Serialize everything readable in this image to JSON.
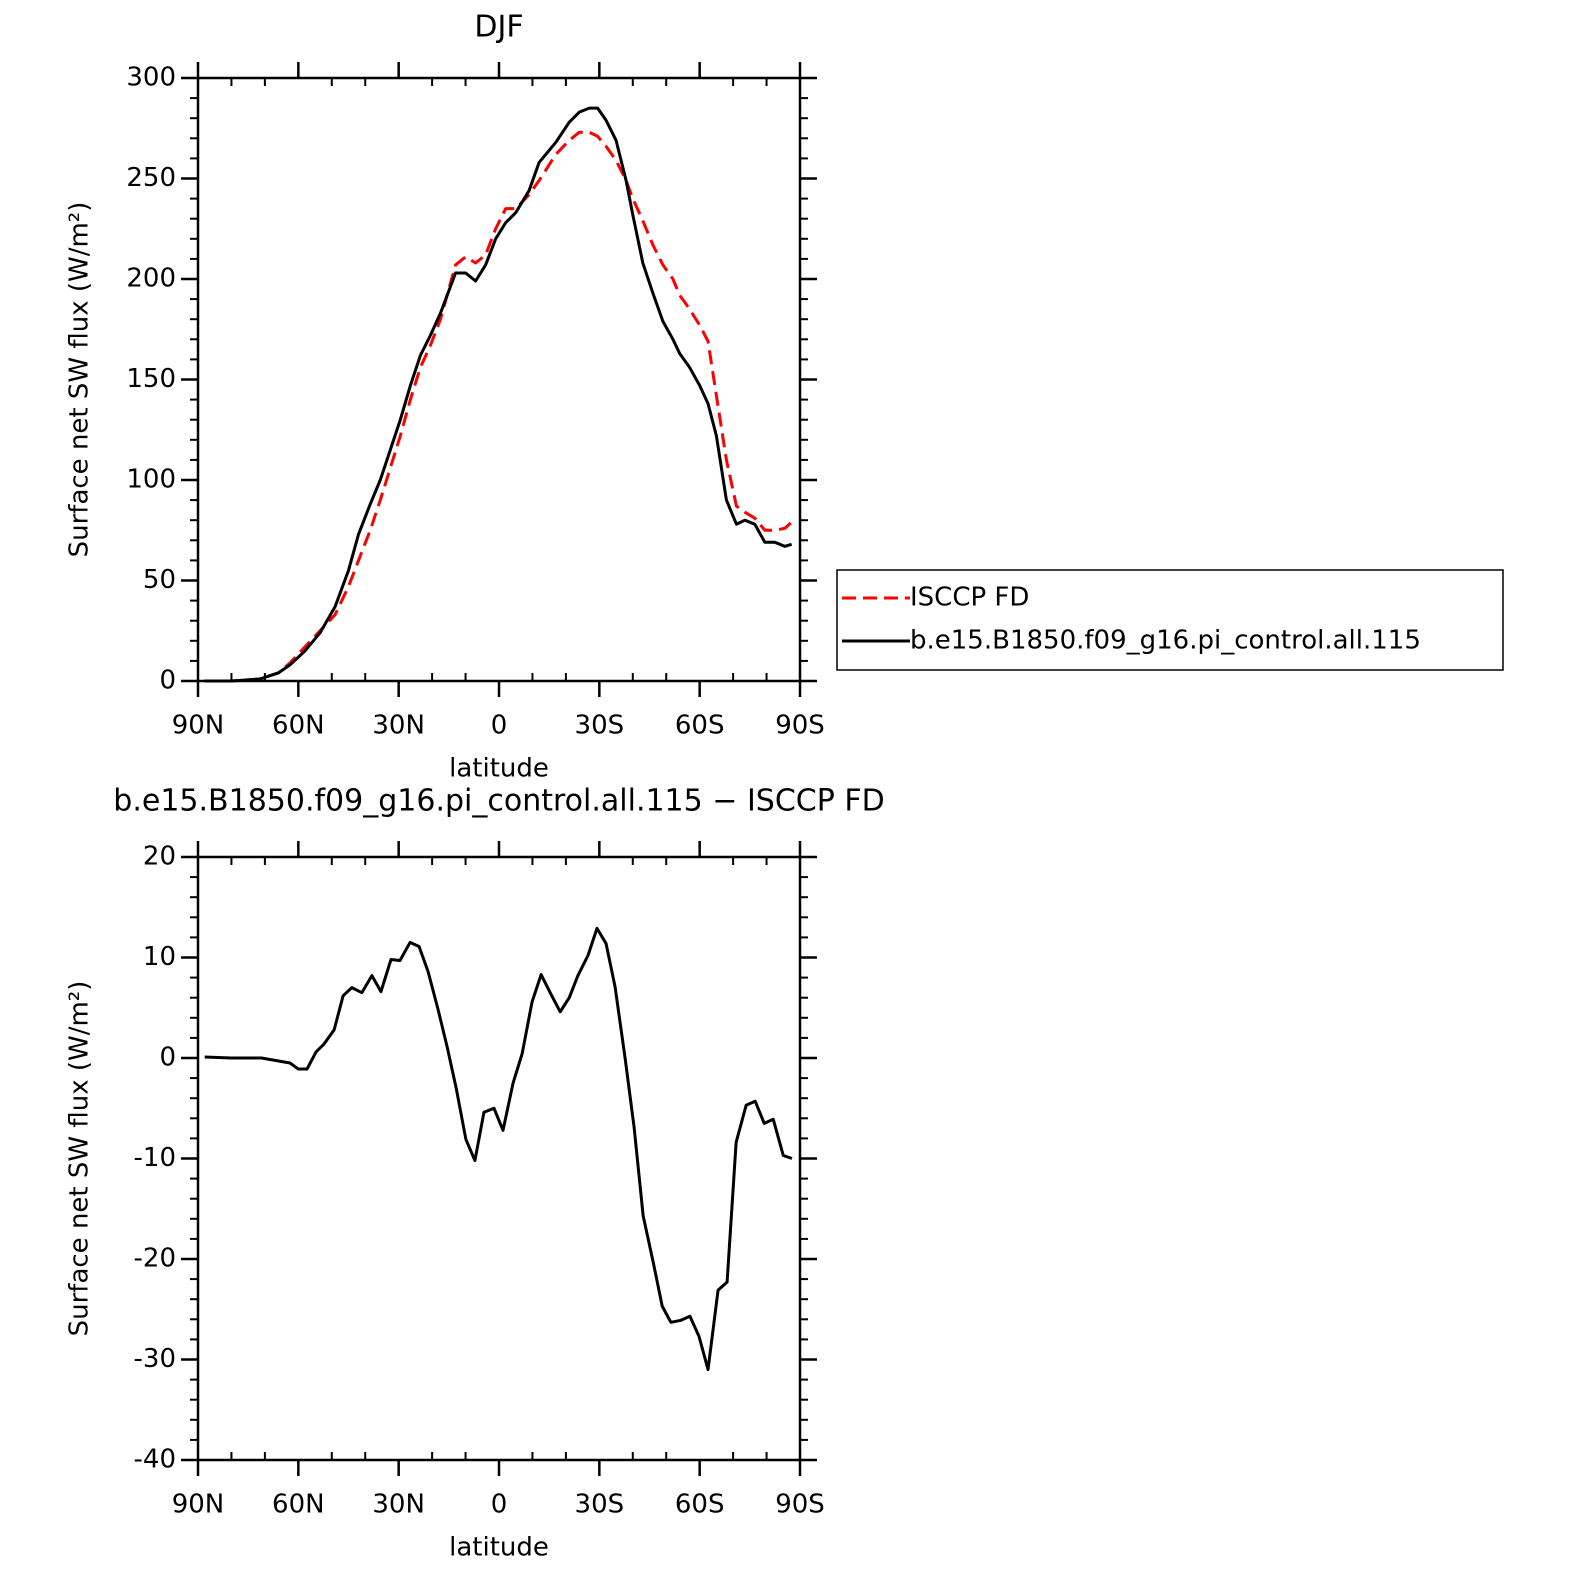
{
  "chart_data": [
    {
      "type": "line",
      "title": "DJF",
      "xlabel": "latitude",
      "ylabel": "Surface net SW flux (W/m²)",
      "x": [
        88,
        80,
        71.5,
        66,
        62.5,
        58,
        53.5,
        49,
        45,
        42,
        38.5,
        35.5,
        32.5,
        29.5,
        26.5,
        23.5,
        20.5,
        17.5,
        13,
        10,
        7,
        4,
        1,
        -2,
        -5,
        -9,
        -12,
        -17,
        -21,
        -24,
        -27,
        -29.5,
        -32,
        -35,
        -38,
        -40,
        -43,
        -46,
        -49,
        -52,
        -54,
        -57,
        -60,
        -62.5,
        -65,
        -68,
        -71,
        -73.5,
        -76.5,
        -79.5,
        -82.5,
        -85.5,
        -87.5
      ],
      "series": [
        {
          "name": "ISCCP FD",
          "color": "#ff0000",
          "dashed": true,
          "values": [
            0,
            0,
            1,
            4,
            9,
            17,
            25,
            33,
            47,
            60,
            75,
            90,
            106,
            122,
            140,
            156,
            167,
            180,
            207,
            211,
            208,
            212,
            225,
            235,
            235,
            242,
            249,
            262,
            269,
            273,
            273,
            271,
            266,
            259,
            249,
            240,
            229,
            217,
            207,
            200,
            192,
            185,
            177,
            169,
            142,
            110,
            87,
            84,
            81,
            75,
            75,
            76,
            79
          ]
        },
        {
          "name": "b.e15.B1850.f09_g16.pi_control.all.115",
          "color": "#000000",
          "dashed": false,
          "values": [
            0,
            0,
            1,
            4,
            8,
            15,
            24,
            37,
            55,
            73,
            88,
            100,
            115,
            130,
            147,
            162,
            172,
            183,
            203,
            203,
            199,
            207,
            220,
            228,
            233,
            244,
            258,
            268,
            278,
            283,
            285,
            285,
            279,
            269,
            249,
            232,
            208,
            193,
            179,
            170,
            163,
            156,
            147,
            138,
            122,
            90,
            78,
            80,
            78,
            69,
            69,
            67,
            68
          ]
        }
      ],
      "xlim": [
        90,
        -90
      ],
      "xticks": [
        {
          "value": 90,
          "label": "90N"
        },
        {
          "value": 60,
          "label": "60N"
        },
        {
          "value": 30,
          "label": "30N"
        },
        0,
        {
          "value": -30,
          "label": "30S"
        },
        {
          "value": -60,
          "label": "60S"
        },
        {
          "value": -90,
          "label": "90S"
        }
      ],
      "xminor": [
        80,
        70,
        50,
        40,
        20,
        10,
        -10,
        -20,
        -40,
        -50,
        -70,
        -80
      ],
      "ylim": [
        0,
        300
      ],
      "yticks": [
        0,
        50,
        100,
        150,
        200,
        250,
        300
      ],
      "yminor": [
        10,
        20,
        30,
        40,
        60,
        70,
        80,
        90,
        110,
        120,
        130,
        140,
        160,
        170,
        180,
        190,
        210,
        220,
        230,
        240,
        260,
        270,
        280,
        290
      ],
      "legend": "right"
    },
    {
      "type": "line",
      "title": "b.e15.B1850.f09_g16.pi_control.all.115 − ISCCP FD",
      "xlabel": "latitude",
      "ylabel": "Surface net SW flux (W/m²)",
      "x": [
        88,
        80,
        71,
        62.5,
        60,
        57.4,
        54.7,
        52.3,
        49.3,
        46.6,
        44,
        41,
        38,
        35.3,
        32.3,
        29.6,
        26.6,
        23.9,
        21.2,
        18.2,
        15.5,
        12.8,
        9.9,
        7.2,
        4.5,
        1.5,
        -1.2,
        -4.2,
        -6.9,
        -9.9,
        -12.6,
        -15.3,
        -18.3,
        -21,
        -23.6,
        -26.6,
        -29.3,
        -32,
        -34.7,
        -37.7,
        -40.4,
        -43.1,
        -46.1,
        -48.8,
        -51.4,
        -54.4,
        -57.1,
        -59.8,
        -62.5,
        -65.5,
        -68.2,
        -70.9,
        -73.9,
        -76.6,
        -79.3,
        -82,
        -85,
        -87.6
      ],
      "series": [
        {
          "color": "#000000",
          "dashed": false,
          "values": [
            0.1,
            0,
            0,
            -0.5,
            -1.1,
            -1.1,
            0.6,
            1.4,
            2.8,
            6.2,
            7,
            6.5,
            8.2,
            6.6,
            9.8,
            9.7,
            11.5,
            11.1,
            8.6,
            4.8,
            1.1,
            -3,
            -8.1,
            -10.2,
            -5.4,
            -5,
            -7.2,
            -2.5,
            0.4,
            5.6,
            8.3,
            6.5,
            4.6,
            6,
            8.2,
            10.2,
            12.9,
            11.4,
            7.1,
            0,
            -6.9,
            -15.7,
            -20.3,
            -24.7,
            -26.3,
            -26.1,
            -25.7,
            -27.7,
            -31,
            -23.1,
            -22.3,
            -8.4,
            -4.7,
            -4.3,
            -6.5,
            -6.1,
            -9.7,
            -10
          ]
        }
      ],
      "xlim": [
        90,
        -90
      ],
      "xticks": [
        {
          "value": 90,
          "label": "90N"
        },
        {
          "value": 60,
          "label": "60N"
        },
        {
          "value": 30,
          "label": "30N"
        },
        0,
        {
          "value": -30,
          "label": "30S"
        },
        {
          "value": -60,
          "label": "60S"
        },
        {
          "value": -90,
          "label": "90S"
        }
      ],
      "xminor": [
        80,
        70,
        50,
        40,
        20,
        10,
        -10,
        -20,
        -40,
        -50,
        -70,
        -80
      ],
      "ylim": [
        -40,
        20
      ],
      "yticks": [
        -40,
        -30,
        -20,
        -10,
        0,
        10,
        20
      ],
      "yminor": [
        -38,
        -36,
        -34,
        -32,
        -28,
        -26,
        -24,
        -22,
        -18,
        -16,
        -14,
        -12,
        -8,
        -6,
        -4,
        -2,
        2,
        4,
        6,
        8,
        12,
        14,
        16,
        18
      ]
    }
  ]
}
